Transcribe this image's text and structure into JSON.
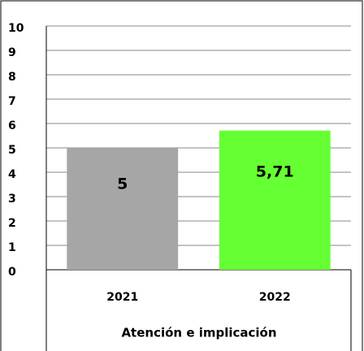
{
  "chart_data": {
    "type": "bar",
    "x_label": "Atención e implicación",
    "categories": [
      "2021",
      "2022"
    ],
    "values": [
      5,
      5.71
    ],
    "value_labels": [
      "5",
      "5,71"
    ],
    "colors": [
      "#a6a6a6",
      "#66ff33"
    ],
    "ylim": [
      0,
      10
    ],
    "yticks": [
      0,
      1,
      2,
      3,
      4,
      5,
      6,
      7,
      8,
      9,
      10
    ],
    "grid": true
  }
}
